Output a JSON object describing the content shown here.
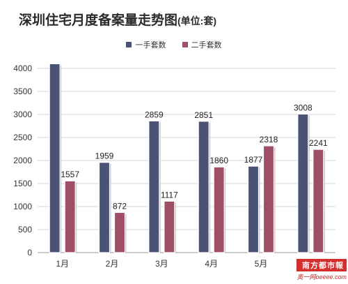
{
  "title": "深圳住宅月度备案量走势图",
  "unit": "(单位:套)",
  "watermark": {
    "line1": "南方都市報",
    "line2": "奥一网oeeee.com"
  },
  "chart_data": {
    "type": "bar",
    "title": "深圳住宅月度备案量走势图(单位:套)",
    "categories": [
      "1月",
      "2月",
      "3月",
      "4月",
      "5月",
      "6月"
    ],
    "series": [
      {
        "name": "一手套数",
        "color": "#4a5275",
        "values": [
          4100,
          1959,
          2859,
          2851,
          1877,
          3008
        ],
        "labels": [
          "",
          "1959",
          "2859",
          "2851",
          "1877",
          "3008"
        ]
      },
      {
        "name": "二手套数",
        "color": "#9e4f66",
        "values": [
          1557,
          872,
          1117,
          1860,
          2318,
          2241
        ],
        "labels": [
          "1557",
          "872",
          "1117",
          "1860",
          "2318",
          "2241"
        ]
      }
    ],
    "ylim": [
      0,
      4000
    ],
    "yticks": [
      0,
      500,
      1000,
      1500,
      2000,
      2500,
      3000,
      3500,
      4000
    ],
    "grid": true,
    "legend_position": "top-center",
    "xlabel": "",
    "ylabel": ""
  }
}
